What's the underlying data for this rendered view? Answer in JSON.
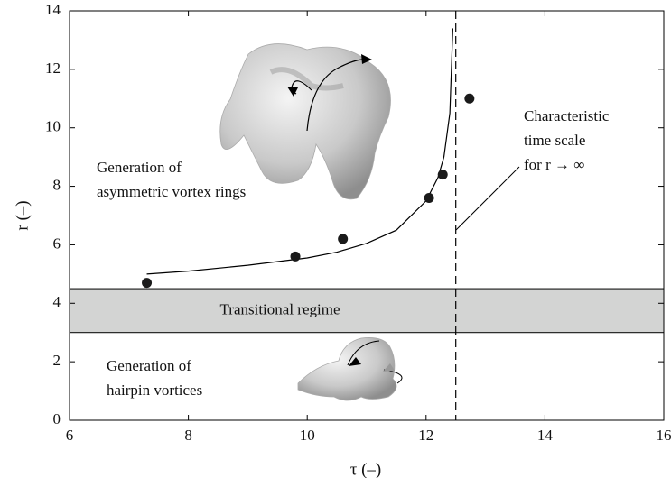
{
  "chart_data": {
    "type": "scatter",
    "xlabel": "τ (–)",
    "ylabel": "r (–)",
    "xlim": [
      6,
      16
    ],
    "ylim": [
      0,
      14
    ],
    "xticks": [
      6,
      8,
      10,
      12,
      14,
      16
    ],
    "yticks": [
      0,
      2,
      4,
      6,
      8,
      10,
      12,
      14
    ],
    "x": [
      7.3,
      9.8,
      10.6,
      12.05,
      12.28,
      12.73
    ],
    "y": [
      4.7,
      5.6,
      6.2,
      7.6,
      8.4,
      11.0
    ],
    "color": "#1a1a1a",
    "curve": {
      "x": [
        7.3,
        8,
        9,
        10,
        10.5,
        11,
        11.5,
        12,
        12.2,
        12.3,
        12.4,
        12.45
      ],
      "y": [
        5.0,
        5.1,
        5.3,
        5.55,
        5.75,
        6.05,
        6.5,
        7.5,
        8.3,
        9.0,
        10.5,
        13.4
      ]
    },
    "vline": 12.5,
    "band": {
      "ymin": 3,
      "ymax": 4.5,
      "color": "#d3d4d3",
      "label": "Transitional regime"
    },
    "annotations": [
      {
        "lines": [
          "Generation of",
          "asymmetric vortex rings"
        ]
      },
      {
        "lines": [
          "Characteristic",
          "time scale",
          "for r → ∞"
        ]
      },
      {
        "lines": [
          "Generation of",
          "hairpin vortices"
        ]
      }
    ]
  }
}
